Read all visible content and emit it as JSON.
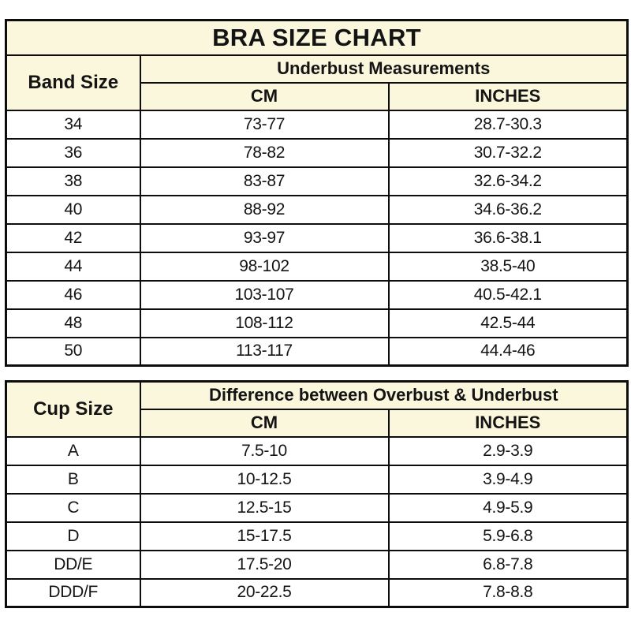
{
  "colors": {
    "header_background": "#FBF7DC",
    "row_background": "#FFFFFF",
    "border": "#0D0D0D",
    "text": "#141414"
  },
  "chart_data": [
    {
      "type": "table",
      "title": "BRA SIZE CHART",
      "corner_header": "Band Size",
      "group_header": "Underbust Measurements",
      "col_headers": [
        "CM",
        "INCHES"
      ],
      "rows": [
        [
          "34",
          "73-77",
          "28.7-30.3"
        ],
        [
          "36",
          "78-82",
          "30.7-32.2"
        ],
        [
          "38",
          "83-87",
          "32.6-34.2"
        ],
        [
          "40",
          "88-92",
          "34.6-36.2"
        ],
        [
          "42",
          "93-97",
          "36.6-38.1"
        ],
        [
          "44",
          "98-102",
          "38.5-40"
        ],
        [
          "46",
          "103-107",
          "40.5-42.1"
        ],
        [
          "48",
          "108-112",
          "42.5-44"
        ],
        [
          "50",
          "113-117",
          "44.4-46"
        ]
      ]
    },
    {
      "type": "table",
      "corner_header": "Cup Size",
      "group_header": "Difference between Overbust & Underbust",
      "col_headers": [
        "CM",
        "INCHES"
      ],
      "rows": [
        [
          "A",
          "7.5-10",
          "2.9-3.9"
        ],
        [
          "B",
          "10-12.5",
          "3.9-4.9"
        ],
        [
          "C",
          "12.5-15",
          "4.9-5.9"
        ],
        [
          "D",
          "15-17.5",
          "5.9-6.8"
        ],
        [
          "DD/E",
          "17.5-20",
          "6.8-7.8"
        ],
        [
          "DDD/F",
          "20-22.5",
          "7.8-8.8"
        ]
      ]
    }
  ]
}
